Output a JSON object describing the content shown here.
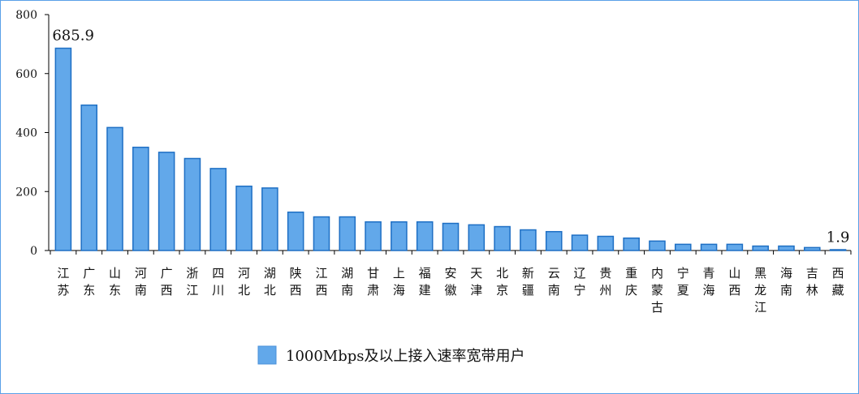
{
  "chart_data": {
    "type": "bar",
    "title": "",
    "xlabel": "",
    "ylabel": "",
    "ylim": [
      0,
      800
    ],
    "yticks": [
      0,
      200,
      400,
      600,
      800
    ],
    "grid": false,
    "legend_position": "bottom-center",
    "bar_color": "#62a8ea",
    "bar_edge_color": "#1e6fc4",
    "categories": [
      "江苏",
      "广东",
      "山东",
      "河南",
      "广西",
      "浙江",
      "四川",
      "河北",
      "湖北",
      "陕西",
      "江西",
      "湖南",
      "甘肃",
      "上海",
      "福建",
      "安徽",
      "天津",
      "北京",
      "新疆",
      "云南",
      "辽宁",
      "贵州",
      "重庆",
      "内蒙古",
      "宁夏",
      "青海",
      "山西",
      "黑龙江",
      "海南",
      "吉林",
      "西藏"
    ],
    "series": [
      {
        "name": "1000Mbps及以上接入速率宽带用户",
        "values": [
          685.9,
          493,
          417,
          350,
          333,
          312,
          278,
          218,
          212,
          130,
          114,
          114,
          97,
          97,
          97,
          92,
          87,
          81,
          70,
          64,
          52,
          48,
          42,
          32,
          21,
          21,
          21,
          15,
          15,
          10,
          1.9
        ]
      }
    ],
    "annotations": [
      {
        "category_index": 0,
        "text": "685.9"
      },
      {
        "category_index": 30,
        "text": "1.9"
      }
    ]
  }
}
